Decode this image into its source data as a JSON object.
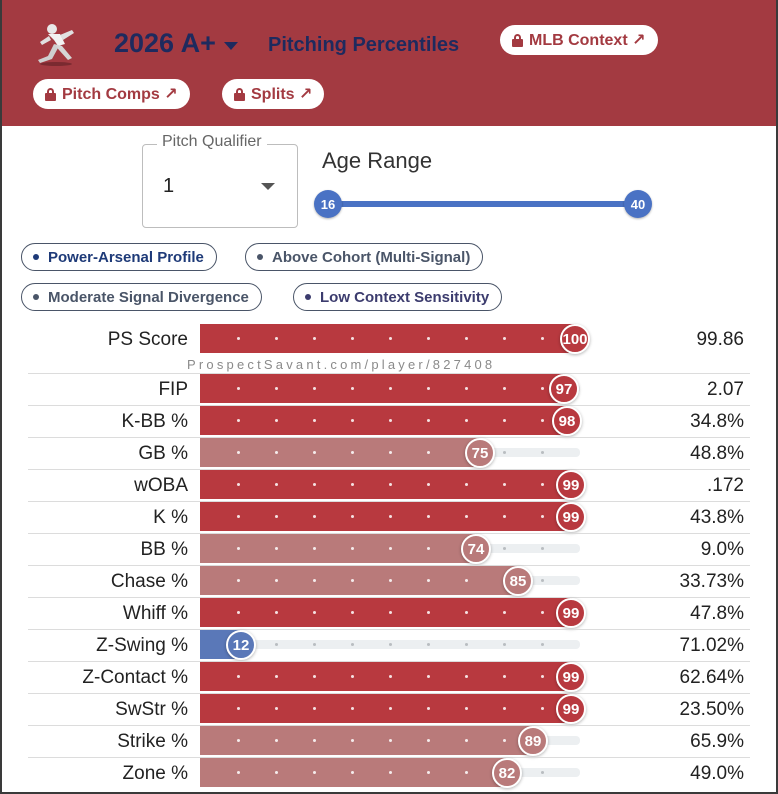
{
  "header": {
    "season": "2026 A+",
    "title": "Pitching Percentiles",
    "buttons": {
      "mlb_context": "MLB Context ↗",
      "pitch_comps": "Pitch Comps ↗",
      "splits": "Splits ↗"
    }
  },
  "qualifier": {
    "label": "Pitch Qualifier",
    "value": "1"
  },
  "age_range": {
    "label": "Age Range",
    "min": "16",
    "max": "40"
  },
  "tags": [
    "Power-Arsenal Profile",
    "Above Cohort (Multi-Signal)",
    "Moderate Signal Divergence",
    "Low Context Sensitivity"
  ],
  "watermark": "ProspectSavant.com/player/827408",
  "colors": {
    "header": "#a33a41",
    "elite": "#b8393f",
    "good": "#b97a7a",
    "poor": "#5a78b8"
  },
  "metrics": [
    {
      "name": "PS Score",
      "percentile": 100,
      "value": "99.86"
    },
    {
      "name": "FIP",
      "percentile": 97,
      "value": "2.07"
    },
    {
      "name": "K-BB %",
      "percentile": 98,
      "value": "34.8%"
    },
    {
      "name": "GB %",
      "percentile": 75,
      "value": "48.8%"
    },
    {
      "name": "wOBA",
      "percentile": 99,
      "value": ".172"
    },
    {
      "name": "K %",
      "percentile": 99,
      "value": "43.8%"
    },
    {
      "name": "BB %",
      "percentile": 74,
      "value": "9.0%"
    },
    {
      "name": "Chase %",
      "percentile": 85,
      "value": "33.73%"
    },
    {
      "name": "Whiff %",
      "percentile": 99,
      "value": "47.8%"
    },
    {
      "name": "Z-Swing %",
      "percentile": 12,
      "value": "71.02%"
    },
    {
      "name": "Z-Contact %",
      "percentile": 99,
      "value": "62.64%"
    },
    {
      "name": "SwStr %",
      "percentile": 99,
      "value": "23.50%"
    },
    {
      "name": "Strike %",
      "percentile": 89,
      "value": "65.9%"
    },
    {
      "name": "Zone %",
      "percentile": 82,
      "value": "49.0%"
    }
  ]
}
